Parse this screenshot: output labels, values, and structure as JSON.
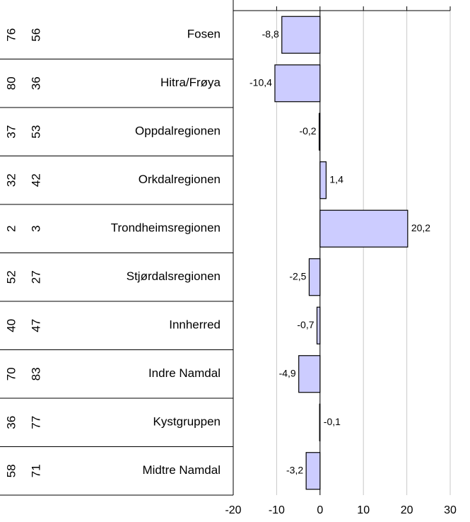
{
  "chart_data": {
    "type": "bar",
    "orientation": "horizontal",
    "categories": [
      "Fosen",
      "Hitra/Frøya",
      "Oppdalregionen",
      "Orkdalregionen",
      "Trondheimsregionen",
      "Stjørdalsregionen",
      "Innherred",
      "Indre Namdal",
      "Kystgruppen",
      "Midtre Namdal"
    ],
    "values": [
      -8.8,
      -10.4,
      -0.2,
      1.4,
      20.2,
      -2.5,
      -0.7,
      -4.9,
      -0.1,
      -3.2
    ],
    "value_labels": [
      "-8,8",
      "-10,4",
      "-0,2",
      "1,4",
      "20,2",
      "-2,5",
      "-0,7",
      "-4,9",
      "-0,1",
      "-3,2"
    ],
    "rank_columns": [
      [
        76,
        80,
        37,
        32,
        2,
        52,
        40,
        70,
        36,
        58
      ],
      [
        56,
        36,
        53,
        42,
        3,
        27,
        47,
        83,
        77,
        71
      ]
    ],
    "color": "#ccccff",
    "xlim": [
      -20,
      30
    ],
    "xticks": [
      -20,
      -10,
      0,
      10,
      20,
      30
    ],
    "grid": true
  }
}
